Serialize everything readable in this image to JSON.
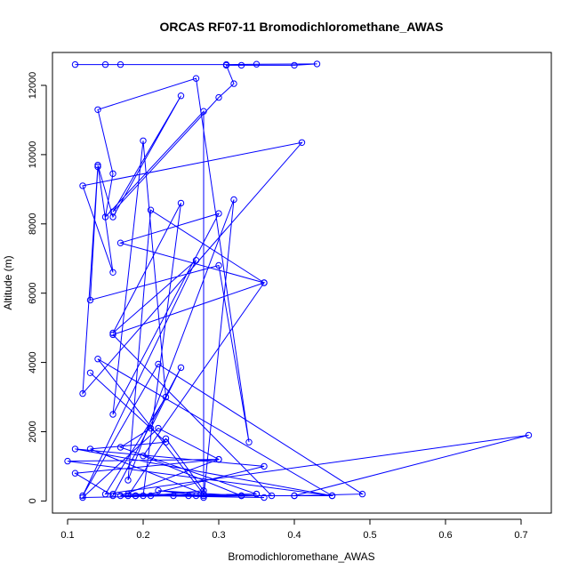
{
  "chart_data": {
    "type": "line",
    "title": "ORCAS RF07-11 Bromodichloromethane_AWAS",
    "xlabel": "Bromodichloromethane_AWAS",
    "ylabel": "Altitude (m)",
    "xlim": [
      0.08,
      0.74
    ],
    "ylim": [
      -350,
      12950
    ],
    "x_ticks": [
      0.1,
      0.2,
      0.3,
      0.4,
      0.5,
      0.6,
      0.7
    ],
    "x_tick_labels": [
      "0.1",
      "0.2",
      "0.3",
      "0.4",
      "0.5",
      "0.6",
      "0.7"
    ],
    "y_ticks": [
      0,
      2000,
      4000,
      6000,
      8000,
      10000,
      12000
    ],
    "y_tick_labels": [
      "0",
      "2000",
      "4000",
      "6000",
      "8000",
      "10000",
      "12000"
    ],
    "grid": false,
    "legend": "none",
    "series_color": "#0000ff",
    "markers": "open-circle",
    "series": [
      {
        "points": [
          [
            0.11,
            12600
          ],
          [
            0.15,
            12600
          ],
          [
            0.17,
            12600
          ],
          [
            0.31,
            12600
          ],
          [
            0.35,
            12610
          ],
          [
            0.43,
            12620
          ],
          [
            0.4,
            12580
          ],
          [
            0.33,
            12580
          ],
          [
            0.31,
            12580
          ],
          [
            0.32,
            12050
          ],
          [
            0.3,
            11650
          ],
          [
            0.16,
            8350
          ],
          [
            0.25,
            11700
          ],
          [
            0.16,
            8200
          ],
          [
            0.14,
            9700
          ],
          [
            0.16,
            6600
          ],
          [
            0.12,
            9100
          ],
          [
            0.41,
            10350
          ],
          [
            0.12,
            3100
          ],
          [
            0.14,
            9650
          ],
          [
            0.13,
            5800
          ],
          [
            0.3,
            6800
          ],
          [
            0.34,
            1700
          ],
          [
            0.27,
            12200
          ],
          [
            0.14,
            11300
          ],
          [
            0.16,
            9450
          ],
          [
            0.15,
            8200
          ],
          [
            0.28,
            11250
          ],
          [
            0.28,
            100
          ],
          [
            0.32,
            8700
          ],
          [
            0.18,
            600
          ],
          [
            0.21,
            8400
          ],
          [
            0.36,
            6300
          ],
          [
            0.17,
            7450
          ],
          [
            0.3,
            8300
          ],
          [
            0.16,
            2500
          ],
          [
            0.2,
            10400
          ],
          [
            0.23,
            3000
          ],
          [
            0.15,
            200
          ],
          [
            0.71,
            1900
          ],
          [
            0.4,
            150
          ],
          [
            0.49,
            200
          ],
          [
            0.22,
            3950
          ],
          [
            0.12,
            150
          ],
          [
            0.27,
            6950
          ],
          [
            0.16,
            4850
          ],
          [
            0.25,
            8600
          ],
          [
            0.2,
            150
          ],
          [
            0.36,
            1000
          ],
          [
            0.11,
            1500
          ],
          [
            0.45,
            150
          ],
          [
            0.1,
            1150
          ],
          [
            0.3,
            1200
          ],
          [
            0.11,
            800
          ],
          [
            0.16,
            150
          ],
          [
            0.25,
            3850
          ],
          [
            0.21,
            2100
          ],
          [
            0.17,
            1550
          ],
          [
            0.35,
            200
          ]
        ]
      },
      {
        "points": [
          [
            0.13,
            3700
          ],
          [
            0.23,
            1700
          ],
          [
            0.13,
            1500
          ],
          [
            0.28,
            200
          ],
          [
            0.14,
            4100
          ],
          [
            0.45,
            150
          ],
          [
            0.19,
            150
          ],
          [
            0.24,
            150
          ],
          [
            0.12,
            100
          ],
          [
            0.22,
            2100
          ],
          [
            0.3,
            1200
          ],
          [
            0.17,
            150
          ],
          [
            0.26,
            150
          ],
          [
            0.33,
            150
          ],
          [
            0.18,
            200
          ],
          [
            0.37,
            150
          ],
          [
            0.16,
            4800
          ],
          [
            0.36,
            6300
          ],
          [
            0.2,
            1300
          ],
          [
            0.33,
            150
          ],
          [
            0.22,
            300
          ],
          [
            0.28,
            150
          ],
          [
            0.35,
            200
          ],
          [
            0.18,
            150
          ],
          [
            0.23,
            1800
          ],
          [
            0.28,
            300
          ],
          [
            0.21,
            150
          ],
          [
            0.36,
            100
          ],
          [
            0.16,
            200
          ],
          [
            0.27,
            150
          ],
          [
            0.19,
            150
          ],
          [
            0.4,
            150
          ]
        ]
      }
    ]
  }
}
